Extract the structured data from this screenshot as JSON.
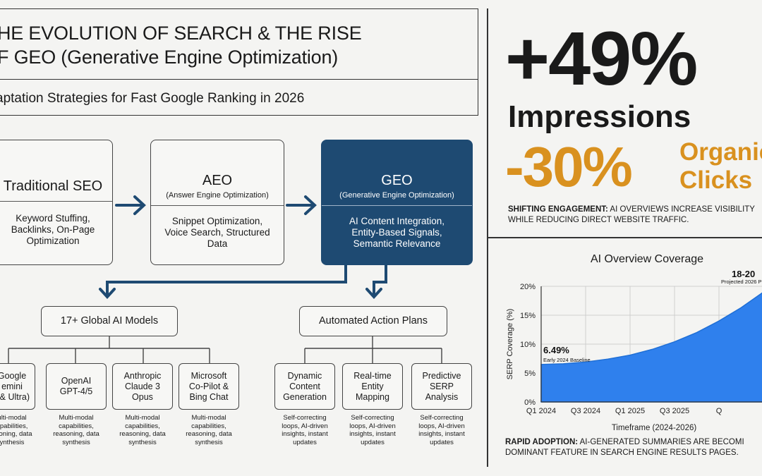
{
  "header": {
    "title_line1": "HE EVOLUTION OF SEARCH & THE RISE",
    "title_line2": "F GEO (Generative Engine Optimization)",
    "subtitle": "aptation Strategies for Fast Google Ranking in 2026"
  },
  "flow": {
    "seo": {
      "title": "Traditional SEO",
      "desc": "Keyword Stuffing, Backlinks, On-Page Optimization"
    },
    "aeo": {
      "title": "AEO",
      "subtitle": "(Answer Engine Optimization)",
      "desc": "Snippet Optimization, Voice Search, Structured Data"
    },
    "geo": {
      "title": "GEO",
      "subtitle": "(Generative Engine Optimization)",
      "desc": "AI Content Integration, Entity-Based Signals, Semantic Relevance"
    }
  },
  "models": {
    "heading": "17+ Global AI Models",
    "items": [
      {
        "name": "Google\nemini\n) & Ultra)",
        "caption": "ulti-modal\napabilities,\nasoning, data\nynthesis"
      },
      {
        "name": "OpenAI\nGPT-4/5",
        "caption": "Multi-modal\ncapabilities,\nreasoning, data\nsynthesis"
      },
      {
        "name": "Anthropic\nClaude 3\nOpus",
        "caption": "Multi-modal\ncapabilities,\nreasoning, data\nsynthesis"
      },
      {
        "name": "Microsoft\nCo-Pilot &\nBing Chat",
        "caption": "Multi-modal\ncapabilities,\nreasoning, data\nsynthesis"
      }
    ]
  },
  "actions": {
    "heading": "Automated Action Plans",
    "items": [
      {
        "name": "Dynamic\nContent\nGeneration",
        "caption": "Self-correcting\nloops, AI-driven\ninsights, instant\nupdates"
      },
      {
        "name": "Real-time\nEntity\nMapping",
        "caption": "Self-correcting\nloops, AI-driven\ninsights, instant\nupdates"
      },
      {
        "name": "Predictive\nSERP\nAnalysis",
        "caption": "Self-correcting\nloops, AI-driven\ninsights, instant\nupdates"
      }
    ]
  },
  "stats": {
    "impressions_value": "+49%",
    "impressions_label": "Impressions",
    "clicks_value": "-30%",
    "clicks_label_1": "Organic",
    "clicks_label_2": "Clicks",
    "engagement_bold": "SHIFTING ENGAGEMENT:",
    "engagement_text_1": " AI OVERVIEWS INCREASE VISIBILITY",
    "engagement_text_2": "WHILE REDUCING DIRECT WEBSITE TRAFFIC."
  },
  "chart_data": {
    "type": "area",
    "title": "AI Overview Coverage",
    "xlabel": "Timeframe (2024-2026)",
    "ylabel": "SERP Coverage (%)",
    "x_ticks": [
      "Q1 2024",
      "Q3 2024",
      "Q1 2025",
      "Q3 2025",
      "Q"
    ],
    "y_ticks": [
      "0%",
      "5%",
      "10%",
      "15%",
      "20%"
    ],
    "ylim": [
      0,
      20
    ],
    "x": [
      0,
      0.5,
      1,
      1.5,
      2,
      2.5,
      3,
      3.5,
      4,
      4.5,
      5
    ],
    "values": [
      6.49,
      6.6,
      6.9,
      7.4,
      8.1,
      9.1,
      10.4,
      12.0,
      14.0,
      16.3,
      19.0
    ],
    "annotations": [
      {
        "value": "6.49%",
        "label": "Early 2024 Baseline"
      },
      {
        "value": "18-20",
        "label": "Projected 2026 P"
      }
    ],
    "fill_color": "#2f80ed",
    "grid": true
  },
  "adoption": {
    "bold": "RAPID ADOPTION:",
    "text_1": " AI-GENERATED SUMMARIES ARE BECOMI",
    "text_2": "DOMINANT FEATURE IN SEARCH ENGINE RESULTS PAGES."
  }
}
